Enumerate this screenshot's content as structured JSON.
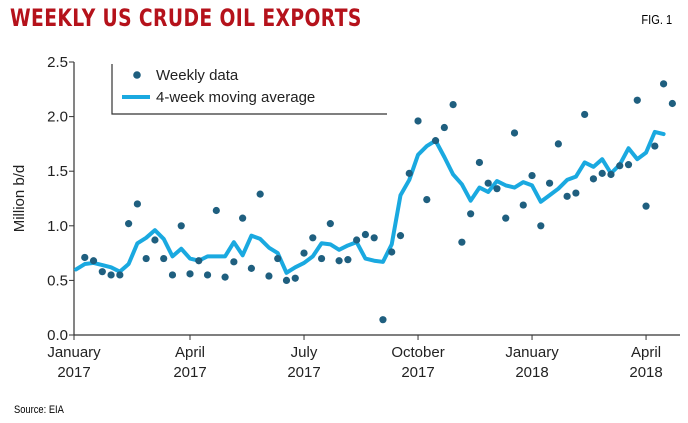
{
  "header": {
    "title": "WEEKLY US CRUDE OIL EXPORTS",
    "fig_label": "FIG. 1",
    "source": "Source: EIA"
  },
  "colors": {
    "title": "#b5121b",
    "scatter": "#1f5f7f",
    "line": "#1aa9e0",
    "axis": "#333333"
  },
  "chart_data": {
    "type": "line",
    "ylabel": "Million b/d",
    "ylim": [
      0,
      2.5
    ],
    "yticks": [
      "0.0",
      "0.5",
      "1.0",
      "1.5",
      "2.0",
      "2.5"
    ],
    "x_ticks": [
      {
        "week": 0,
        "line1": "January",
        "line2": "2017"
      },
      {
        "week": 13,
        "line1": "April",
        "line2": "2017"
      },
      {
        "week": 26,
        "line1": "July",
        "line2": "2017"
      },
      {
        "week": 39,
        "line1": "October",
        "line2": "2017"
      },
      {
        "week": 52,
        "line1": "January",
        "line2": "2018"
      },
      {
        "week": 65,
        "line1": "April",
        "line2": "2018"
      }
    ],
    "x_range": [
      0,
      69
    ],
    "legend": {
      "position": "top-left",
      "scatter_label": "Weekly data",
      "line_label": "4-week moving average"
    },
    "series": [
      {
        "name": "Weekly data",
        "kind": "scatter",
        "values": [
          0.71,
          0.68,
          0.58,
          0.55,
          0.55,
          1.02,
          1.2,
          0.7,
          0.87,
          0.7,
          0.55,
          1.0,
          0.56,
          0.68,
          0.55,
          1.14,
          0.53,
          0.67,
          1.07,
          0.61,
          1.29,
          0.54,
          0.7,
          0.5,
          0.52,
          0.75,
          0.89,
          0.7,
          1.02,
          0.68,
          0.69,
          0.87,
          0.92,
          0.89,
          0.14,
          0.76,
          0.91,
          1.48,
          1.96,
          1.24,
          1.78,
          1.9,
          2.11,
          0.85,
          1.11,
          1.58,
          1.39,
          1.34,
          1.07,
          1.85,
          1.19,
          1.46,
          1.0,
          1.39,
          1.75,
          1.27,
          1.3,
          2.02,
          1.43,
          1.48,
          1.47,
          1.55,
          1.56,
          2.15,
          1.18,
          1.73,
          2.3,
          2.12
        ]
      },
      {
        "name": "4-week moving average",
        "kind": "line",
        "values": [
          0.6,
          0.65,
          0.66,
          0.64,
          0.62,
          0.58,
          0.65,
          0.84,
          0.89,
          0.96,
          0.88,
          0.72,
          0.79,
          0.7,
          0.68,
          0.72,
          0.72,
          0.72,
          0.85,
          0.73,
          0.91,
          0.88,
          0.8,
          0.75,
          0.57,
          0.62,
          0.66,
          0.72,
          0.84,
          0.83,
          0.78,
          0.82,
          0.85,
          0.7,
          0.68,
          0.67,
          0.83,
          1.28,
          1.42,
          1.65,
          1.73,
          1.78,
          1.63,
          1.47,
          1.38,
          1.23,
          1.35,
          1.31,
          1.41,
          1.37,
          1.35,
          1.4,
          1.37,
          1.22,
          1.28,
          1.34,
          1.42,
          1.45,
          1.58,
          1.54,
          1.61,
          1.48,
          1.56,
          1.71,
          1.61,
          1.67,
          1.86,
          1.84
        ]
      }
    ]
  }
}
